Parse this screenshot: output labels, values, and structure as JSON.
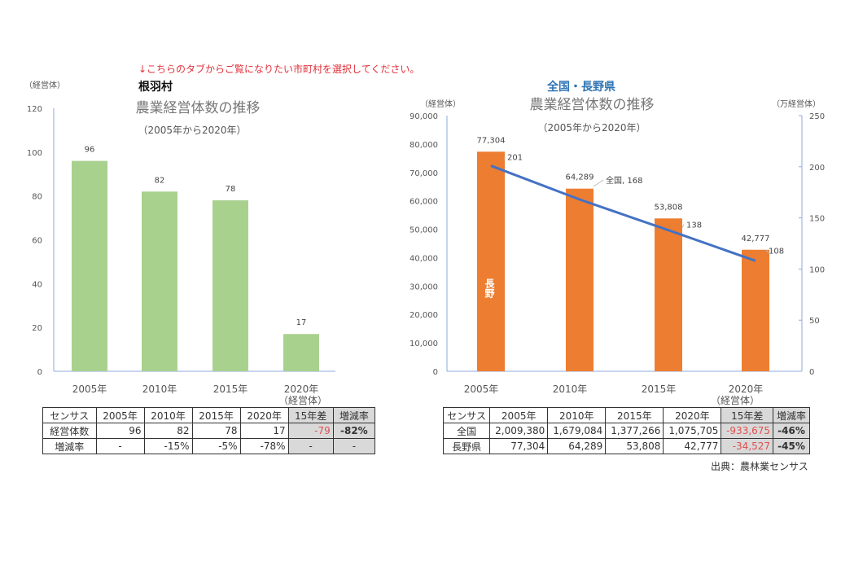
{
  "notice": "↓こちらのタブからご覧になりたい市町村を選択してください。",
  "chart_data": [
    {
      "type": "bar",
      "heading": "根羽村",
      "title": "農業経営体数の推移",
      "subtitle": "（2005年から2020年）",
      "ylabel": "（経営体）",
      "categories": [
        "2005年",
        "2010年",
        "2015年",
        "2020年"
      ],
      "xunit": "（経営体）",
      "values": [
        96,
        82,
        78,
        17
      ],
      "ylim": [
        0,
        120
      ],
      "yticks": [
        0,
        20,
        40,
        60,
        80,
        100,
        120
      ],
      "color": "#a9d18e",
      "grid": false
    },
    {
      "type": "bar+line",
      "heading": "全国・長野県",
      "title": "農業経営体数の推移",
      "subtitle": "（2005年から2020年）",
      "ylabel": "（経営体）",
      "y2label": "（万経営体）",
      "categories": [
        "2005年",
        "2010年",
        "2015年",
        "2020年"
      ],
      "xunit": "（経営体）",
      "series": [
        {
          "name": "長野",
          "type": "bar",
          "axis": "left",
          "values": [
            77304,
            64289,
            53808,
            42777
          ],
          "labels": [
            "77,304",
            "64,289",
            "53,808",
            "42,777"
          ],
          "color": "#ed7d31"
        },
        {
          "name": "全国",
          "type": "line",
          "axis": "right",
          "values": [
            201,
            168,
            138,
            108
          ],
          "labels": [
            "201",
            "全国, 168",
            "138",
            "108"
          ],
          "color": "#4472c4"
        }
      ],
      "ylim": [
        0,
        90000
      ],
      "yticks": [
        "0",
        "10,000",
        "20,000",
        "30,000",
        "40,000",
        "50,000",
        "60,000",
        "70,000",
        "80,000",
        "90,000"
      ],
      "y2lim": [
        0,
        250
      ],
      "y2ticks": [
        "0",
        "50",
        "100",
        "150",
        "200",
        "250"
      ],
      "grid": false
    }
  ],
  "left_table": {
    "header": [
      "センサス",
      "2005年",
      "2010年",
      "2015年",
      "2020年",
      "15年差",
      "増減率"
    ],
    "rows": [
      [
        "経営体数",
        "96",
        "82",
        "78",
        "17",
        "-79",
        "-82%"
      ],
      [
        "増減率",
        "-",
        "-15%",
        "-5%",
        "-78%",
        "-",
        "-"
      ]
    ]
  },
  "right_table": {
    "header": [
      "センサス",
      "2005年",
      "2010年",
      "2015年",
      "2020年",
      "15年差",
      "増減率"
    ],
    "rows": [
      [
        "全国",
        "2,009,380",
        "1,679,084",
        "1,377,266",
        "1,075,705",
        "-933,675",
        "-46%"
      ],
      [
        "長野県",
        "77,304",
        "64,289",
        "53,808",
        "42,777",
        "-34,527",
        "-45%"
      ]
    ]
  },
  "source": "出典：農林業センサス"
}
